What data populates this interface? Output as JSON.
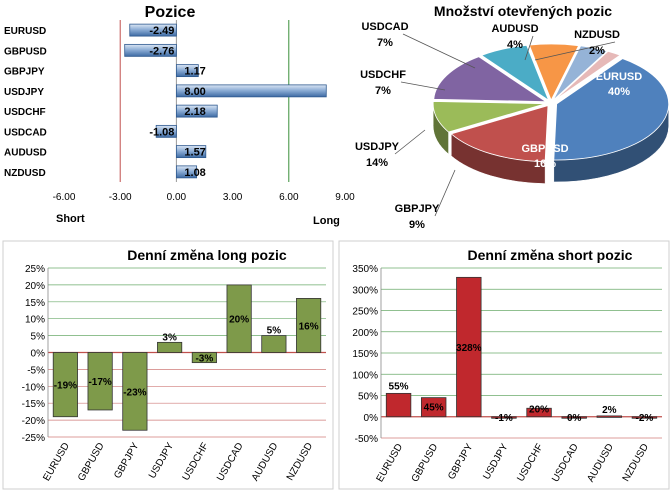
{
  "colors": {
    "bar_blue": "#4f81bd",
    "bar_green": "#77933c",
    "bar_red": "#c0282d",
    "zero_line_red": "#c0504d",
    "grid_green": "#3a8f3a",
    "grid_red": "#c0504d",
    "frame": "#cfcfcf"
  },
  "chart_data": [
    {
      "id": "positions",
      "type": "bar",
      "orientation": "horizontal",
      "title": "Pozice",
      "categories": [
        "EURUSD",
        "GBPUSD",
        "GBPJPY",
        "USDJPY",
        "USDCHF",
        "USDCAD",
        "AUDUSD",
        "NZDUSD"
      ],
      "values": [
        -2.49,
        -2.76,
        1.17,
        8.0,
        2.18,
        -1.08,
        1.57,
        1.08
      ],
      "labels": [
        "-2.49",
        "-2.76",
        "1.17",
        "8.00",
        "2.18",
        "-1.08",
        "1.57",
        "1.08"
      ],
      "xticks": [
        "-6.00",
        "-3.00",
        "0.00",
        "3.00",
        "6.00",
        "9.00"
      ],
      "xlim": [
        -6,
        9
      ],
      "left_label": "Short",
      "right_label": "Long"
    },
    {
      "id": "open-positions",
      "type": "pie",
      "title": "Množství otevřených pozic",
      "slices": [
        {
          "label": "EURUSD",
          "value": 40,
          "pct": "40%",
          "color": "#4f81bd"
        },
        {
          "label": "GBPUSD",
          "value": 16,
          "pct": "16%",
          "color": "#c0504d"
        },
        {
          "label": "GBPJPY",
          "value": 9,
          "pct": "9%",
          "color": "#9bbb59"
        },
        {
          "label": "USDJPY",
          "value": 14,
          "pct": "14%",
          "color": "#8064a2"
        },
        {
          "label": "USDCHF",
          "value": 7,
          "pct": "7%",
          "color": "#4bacc6"
        },
        {
          "label": "USDCAD",
          "value": 7,
          "pct": "7%",
          "color": "#f79646"
        },
        {
          "label": "AUDUSD",
          "value": 4,
          "pct": "4%",
          "color": "#95b3d7"
        },
        {
          "label": "NZDUSD",
          "value": 2,
          "pct": "2%",
          "color": "#e6b9b8"
        }
      ]
    },
    {
      "id": "daily-long",
      "type": "bar",
      "title": "Denní změna long pozic",
      "categories": [
        "EURUSD",
        "GBPUSD",
        "GBPJPY",
        "USDJPY",
        "USDCHF",
        "USDCAD",
        "AUDUSD",
        "NZDUSD"
      ],
      "values": [
        -19,
        -17,
        -23,
        3,
        -3,
        20,
        5,
        16
      ],
      "labels": [
        "-19%",
        "-17%",
        "-23%",
        "3%",
        "-3%",
        "20%",
        "5%",
        "16%"
      ],
      "yticks": [
        "25%",
        "20%",
        "15%",
        "10%",
        "5%",
        "0%",
        "-5%",
        "-10%",
        "-15%",
        "-20%",
        "-25%"
      ],
      "ylim": [
        -25,
        25
      ]
    },
    {
      "id": "daily-short",
      "type": "bar",
      "title": "Denní změna short pozic",
      "categories": [
        "EURUSD",
        "GBPUSD",
        "GBPJPY",
        "USDJPY",
        "USDCHF",
        "USDCAD",
        "AUDUSD",
        "NZDUSD"
      ],
      "values": [
        55,
        45,
        328,
        -1,
        20,
        0,
        2,
        -2
      ],
      "labels": [
        "55%",
        "45%",
        "328%",
        "-1%",
        "20%",
        "0%",
        "2%",
        "-2%"
      ],
      "yticks": [
        "350%",
        "300%",
        "250%",
        "200%",
        "150%",
        "100%",
        "50%",
        "0%",
        "-50%"
      ],
      "ylim": [
        -50,
        350
      ]
    }
  ]
}
